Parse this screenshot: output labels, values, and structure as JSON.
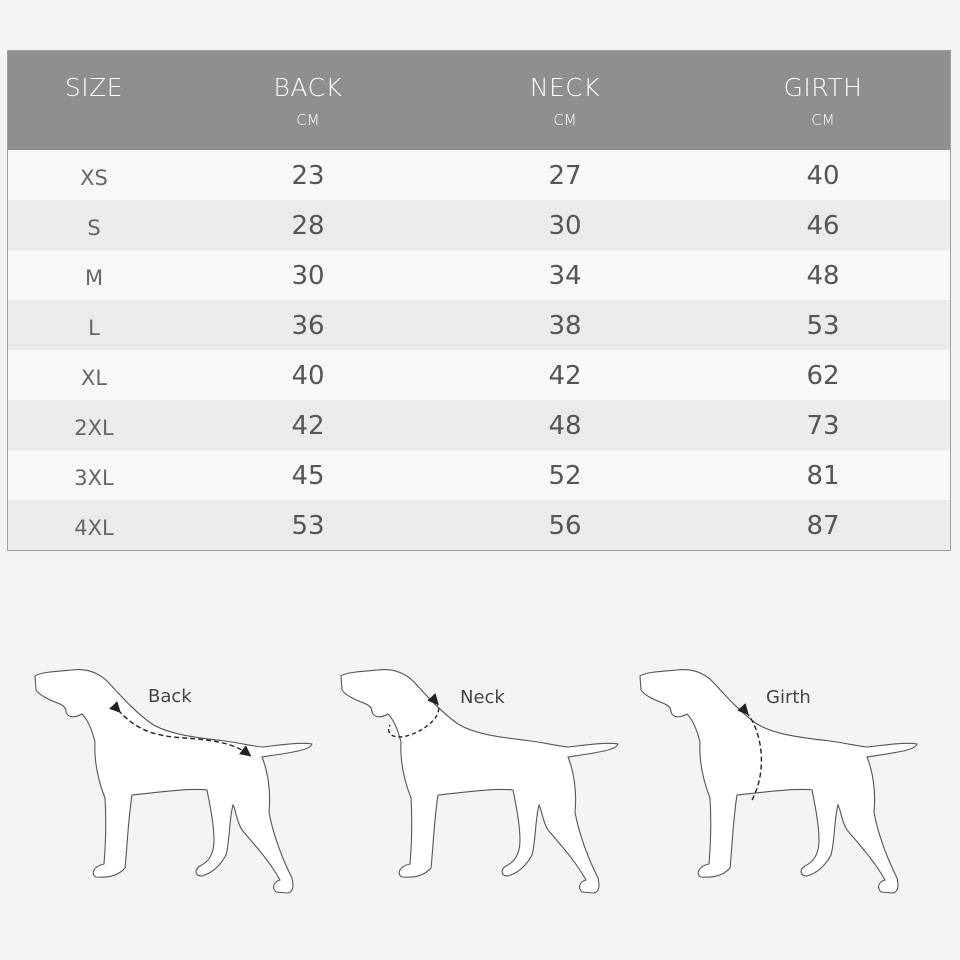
{
  "table": {
    "headers": [
      {
        "title": "SIZE",
        "unit": ""
      },
      {
        "title": "BACK",
        "unit": "CM"
      },
      {
        "title": "NECK",
        "unit": "CM"
      },
      {
        "title": "GIRTH",
        "unit": "CM"
      }
    ],
    "rows": [
      [
        "XS",
        "23",
        "27",
        "40"
      ],
      [
        "S",
        "28",
        "30",
        "46"
      ],
      [
        "M",
        "30",
        "34",
        "48"
      ],
      [
        "L",
        "36",
        "38",
        "53"
      ],
      [
        "XL",
        "40",
        "42",
        "62"
      ],
      [
        "2XL",
        "42",
        "48",
        "73"
      ],
      [
        "3XL",
        "45",
        "52",
        "81"
      ],
      [
        "4XL",
        "53",
        "56",
        "87"
      ]
    ]
  },
  "diagrams": [
    {
      "label": "Back"
    },
    {
      "label": "Neck"
    },
    {
      "label": "Girth"
    }
  ],
  "colors": {
    "header": "#8f8f8f",
    "row_light": "#f8f8f8",
    "row_dark": "#ebebeb",
    "background": "#f4f4f4"
  }
}
